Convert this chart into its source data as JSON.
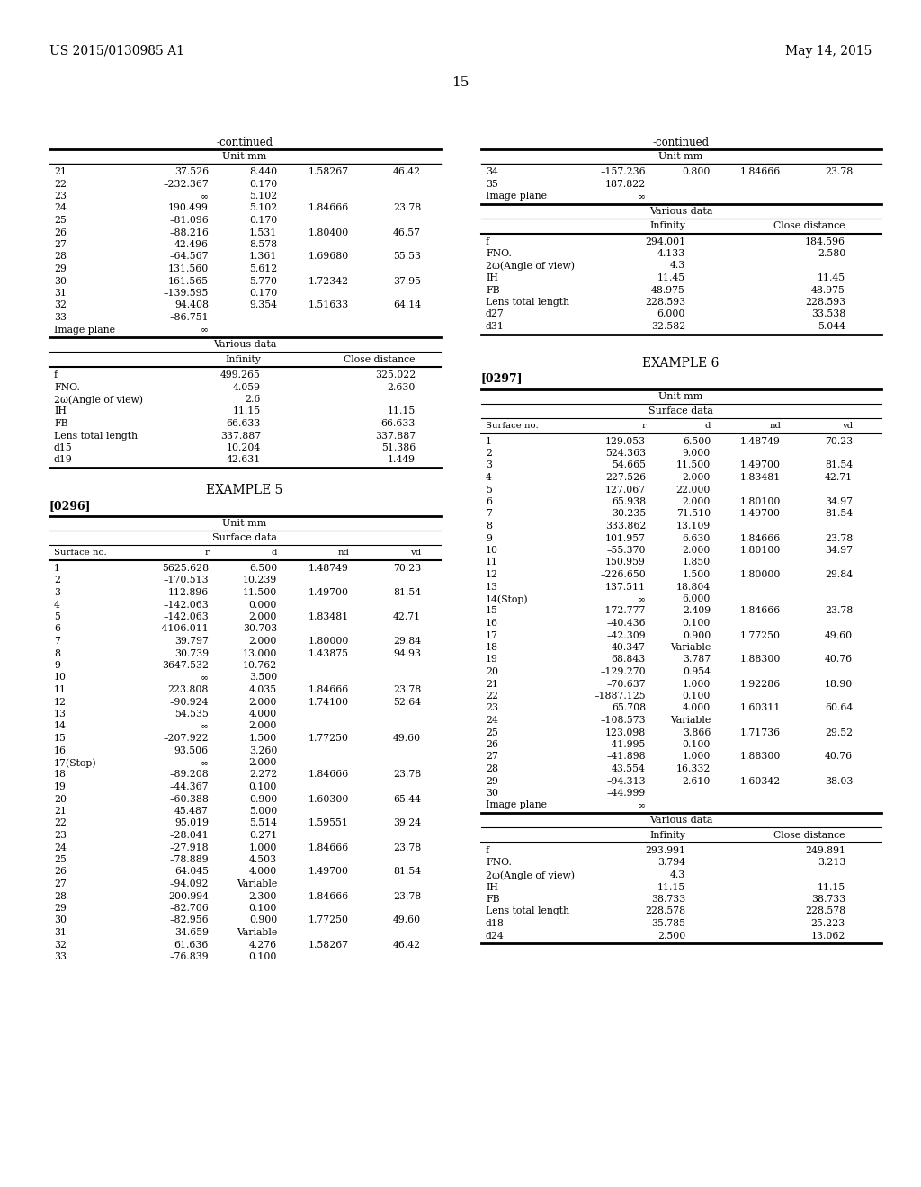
{
  "header_left": "US 2015/0130985 A1",
  "header_right": "May 14, 2015",
  "page_number": "15",
  "bg_color": "#ffffff",
  "lc_continued": "-continued",
  "lc_unit_mm": "Unit mm",
  "lc_surface_rows": [
    [
      "21",
      "37.526",
      "8.440",
      "1.58267",
      "46.42"
    ],
    [
      "22",
      "–232.367",
      "0.170",
      "",
      ""
    ],
    [
      "23",
      "∞",
      "5.102",
      "",
      ""
    ],
    [
      "24",
      "190.499",
      "5.102",
      "1.84666",
      "23.78"
    ],
    [
      "25",
      "–81.096",
      "0.170",
      "",
      ""
    ],
    [
      "26",
      "–88.216",
      "1.531",
      "1.80400",
      "46.57"
    ],
    [
      "27",
      "42.496",
      "8.578",
      "",
      ""
    ],
    [
      "28",
      "–64.567",
      "1.361",
      "1.69680",
      "55.53"
    ],
    [
      "29",
      "131.560",
      "5.612",
      "",
      ""
    ],
    [
      "30",
      "161.565",
      "5.770",
      "1.72342",
      "37.95"
    ],
    [
      "31",
      "–139.595",
      "0.170",
      "",
      ""
    ],
    [
      "32",
      "94.408",
      "9.354",
      "1.51633",
      "64.14"
    ],
    [
      "33",
      "–86.751",
      "",
      "",
      ""
    ],
    [
      "Image plane",
      "∞",
      "",
      "",
      ""
    ]
  ],
  "lc_various_label": "Various data",
  "lc_various_rows": [
    [
      "f",
      "499.265",
      "325.022"
    ],
    [
      "FNO.",
      "4.059",
      "2.630"
    ],
    [
      "2ω(Angle of view)",
      "2.6",
      ""
    ],
    [
      "IH",
      "11.15",
      "11.15"
    ],
    [
      "FB",
      "66.633",
      "66.633"
    ],
    [
      "Lens total length",
      "337.887",
      "337.887"
    ],
    [
      "d15",
      "10.204",
      "51.386"
    ],
    [
      "d19",
      "42.631",
      "1.449"
    ]
  ],
  "ex5_label": "EXAMPLE 5",
  "ex5_ref": "[0296]",
  "ex5_unit": "Unit mm",
  "ex5_surf": "Surface data",
  "ex5_hdrs": [
    "Surface no.",
    "r",
    "d",
    "nd",
    "vd"
  ],
  "ex5_rows": [
    [
      "1",
      "5625.628",
      "6.500",
      "1.48749",
      "70.23"
    ],
    [
      "2",
      "–170.513",
      "10.239",
      "",
      ""
    ],
    [
      "3",
      "112.896",
      "11.500",
      "1.49700",
      "81.54"
    ],
    [
      "4",
      "–142.063",
      "0.000",
      "",
      ""
    ],
    [
      "5",
      "–142.063",
      "2.000",
      "1.83481",
      "42.71"
    ],
    [
      "6",
      "–4106.011",
      "30.703",
      "",
      ""
    ],
    [
      "7",
      "39.797",
      "2.000",
      "1.80000",
      "29.84"
    ],
    [
      "8",
      "30.739",
      "13.000",
      "1.43875",
      "94.93"
    ],
    [
      "9",
      "3647.532",
      "10.762",
      "",
      ""
    ],
    [
      "10",
      "∞",
      "3.500",
      "",
      ""
    ],
    [
      "11",
      "223.808",
      "4.035",
      "1.84666",
      "23.78"
    ],
    [
      "12",
      "–90.924",
      "2.000",
      "1.74100",
      "52.64"
    ],
    [
      "13",
      "54.535",
      "4.000",
      "",
      ""
    ],
    [
      "14",
      "∞",
      "2.000",
      "",
      ""
    ],
    [
      "15",
      "–207.922",
      "1.500",
      "1.77250",
      "49.60"
    ],
    [
      "16",
      "93.506",
      "3.260",
      "",
      ""
    ],
    [
      "17(Stop)",
      "∞",
      "2.000",
      "",
      ""
    ],
    [
      "18",
      "–89.208",
      "2.272",
      "1.84666",
      "23.78"
    ],
    [
      "19",
      "–44.367",
      "0.100",
      "",
      ""
    ],
    [
      "20",
      "–60.388",
      "0.900",
      "1.60300",
      "65.44"
    ],
    [
      "21",
      "45.487",
      "5.000",
      "",
      ""
    ],
    [
      "22",
      "95.019",
      "5.514",
      "1.59551",
      "39.24"
    ],
    [
      "23",
      "–28.041",
      "0.271",
      "",
      ""
    ],
    [
      "24",
      "–27.918",
      "1.000",
      "1.84666",
      "23.78"
    ],
    [
      "25",
      "–78.889",
      "4.503",
      "",
      ""
    ],
    [
      "26",
      "64.045",
      "4.000",
      "1.49700",
      "81.54"
    ],
    [
      "27",
      "–94.092",
      "Variable",
      "",
      ""
    ],
    [
      "28",
      "200.994",
      "2.300",
      "1.84666",
      "23.78"
    ],
    [
      "29",
      "–82.706",
      "0.100",
      "",
      ""
    ],
    [
      "30",
      "–82.956",
      "0.900",
      "1.77250",
      "49.60"
    ],
    [
      "31",
      "34.659",
      "Variable",
      "",
      ""
    ],
    [
      "32",
      "61.636",
      "4.276",
      "1.58267",
      "46.42"
    ],
    [
      "33",
      "–76.839",
      "0.100",
      "",
      ""
    ]
  ],
  "rc_continued": "-continued",
  "rc_unit_mm": "Unit mm",
  "rc_surface_rows": [
    [
      "34",
      "–157.236",
      "0.800",
      "1.84666",
      "23.78"
    ],
    [
      "35",
      "187.822",
      "",
      "",
      ""
    ],
    [
      "Image plane",
      "∞",
      "",
      "",
      ""
    ]
  ],
  "rc_various_label": "Various data",
  "rc_various_rows": [
    [
      "f",
      "294.001",
      "184.596"
    ],
    [
      "FNO.",
      "4.133",
      "2.580"
    ],
    [
      "2ω(Angle of view)",
      "4.3",
      ""
    ],
    [
      "IH",
      "11.45",
      "11.45"
    ],
    [
      "FB",
      "48.975",
      "48.975"
    ],
    [
      "Lens total length",
      "228.593",
      "228.593"
    ],
    [
      "d27",
      "6.000",
      "33.538"
    ],
    [
      "d31",
      "32.582",
      "5.044"
    ]
  ],
  "ex6_label": "EXAMPLE 6",
  "ex6_ref": "[0297]",
  "ex6_unit": "Unit mm",
  "ex6_surf": "Surface data",
  "ex6_hdrs": [
    "Surface no.",
    "r",
    "d",
    "nd",
    "vd"
  ],
  "ex6_rows": [
    [
      "1",
      "129.053",
      "6.500",
      "1.48749",
      "70.23"
    ],
    [
      "2",
      "524.363",
      "9.000",
      "",
      ""
    ],
    [
      "3",
      "54.665",
      "11.500",
      "1.49700",
      "81.54"
    ],
    [
      "4",
      "227.526",
      "2.000",
      "1.83481",
      "42.71"
    ],
    [
      "5",
      "127.067",
      "22.000",
      "",
      ""
    ],
    [
      "6",
      "65.938",
      "2.000",
      "1.80100",
      "34.97"
    ],
    [
      "7",
      "30.235",
      "71.510",
      "1.49700",
      "81.54"
    ],
    [
      "8",
      "333.862",
      "13.109",
      "",
      ""
    ],
    [
      "9",
      "101.957",
      "6.630",
      "1.84666",
      "23.78"
    ],
    [
      "10",
      "–55.370",
      "2.000",
      "1.80100",
      "34.97"
    ],
    [
      "11",
      "150.959",
      "1.850",
      "",
      ""
    ],
    [
      "12",
      "–226.650",
      "1.500",
      "1.80000",
      "29.84"
    ],
    [
      "13",
      "137.511",
      "18.804",
      "",
      ""
    ],
    [
      "14(Stop)",
      "∞",
      "6.000",
      "",
      ""
    ],
    [
      "15",
      "–172.777",
      "2.409",
      "1.84666",
      "23.78"
    ],
    [
      "16",
      "–40.436",
      "0.100",
      "",
      ""
    ],
    [
      "17",
      "–42.309",
      "0.900",
      "1.77250",
      "49.60"
    ],
    [
      "18",
      "40.347",
      "Variable",
      "",
      ""
    ],
    [
      "19",
      "68.843",
      "3.787",
      "1.88300",
      "40.76"
    ],
    [
      "20",
      "–129.270",
      "0.954",
      "",
      ""
    ],
    [
      "21",
      "–70.637",
      "1.000",
      "1.92286",
      "18.90"
    ],
    [
      "22",
      "–1887.125",
      "0.100",
      "",
      ""
    ],
    [
      "23",
      "65.708",
      "4.000",
      "1.60311",
      "60.64"
    ],
    [
      "24",
      "–108.573",
      "Variable",
      "",
      ""
    ],
    [
      "25",
      "123.098",
      "3.866",
      "1.71736",
      "29.52"
    ],
    [
      "26",
      "–41.995",
      "0.100",
      "",
      ""
    ],
    [
      "27",
      "–41.898",
      "1.000",
      "1.88300",
      "40.76"
    ],
    [
      "28",
      "43.554",
      "16.332",
      "",
      ""
    ],
    [
      "29",
      "–94.313",
      "2.610",
      "1.60342",
      "38.03"
    ],
    [
      "30",
      "–44.999",
      "",
      "",
      ""
    ],
    [
      "Image plane",
      "∞",
      "",
      "",
      ""
    ]
  ],
  "ex6_various_label": "Various data",
  "ex6_various_rows": [
    [
      "f",
      "293.991",
      "249.891"
    ],
    [
      "FNO.",
      "3.794",
      "3.213"
    ],
    [
      "2ω(Angle of view)",
      "4.3",
      ""
    ],
    [
      "IH",
      "11.15",
      "11.15"
    ],
    [
      "FB",
      "38.733",
      "38.733"
    ],
    [
      "Lens total length",
      "228.578",
      "228.578"
    ],
    [
      "d18",
      "35.785",
      "25.223"
    ],
    [
      "d24",
      "2.500",
      "13.062"
    ]
  ]
}
